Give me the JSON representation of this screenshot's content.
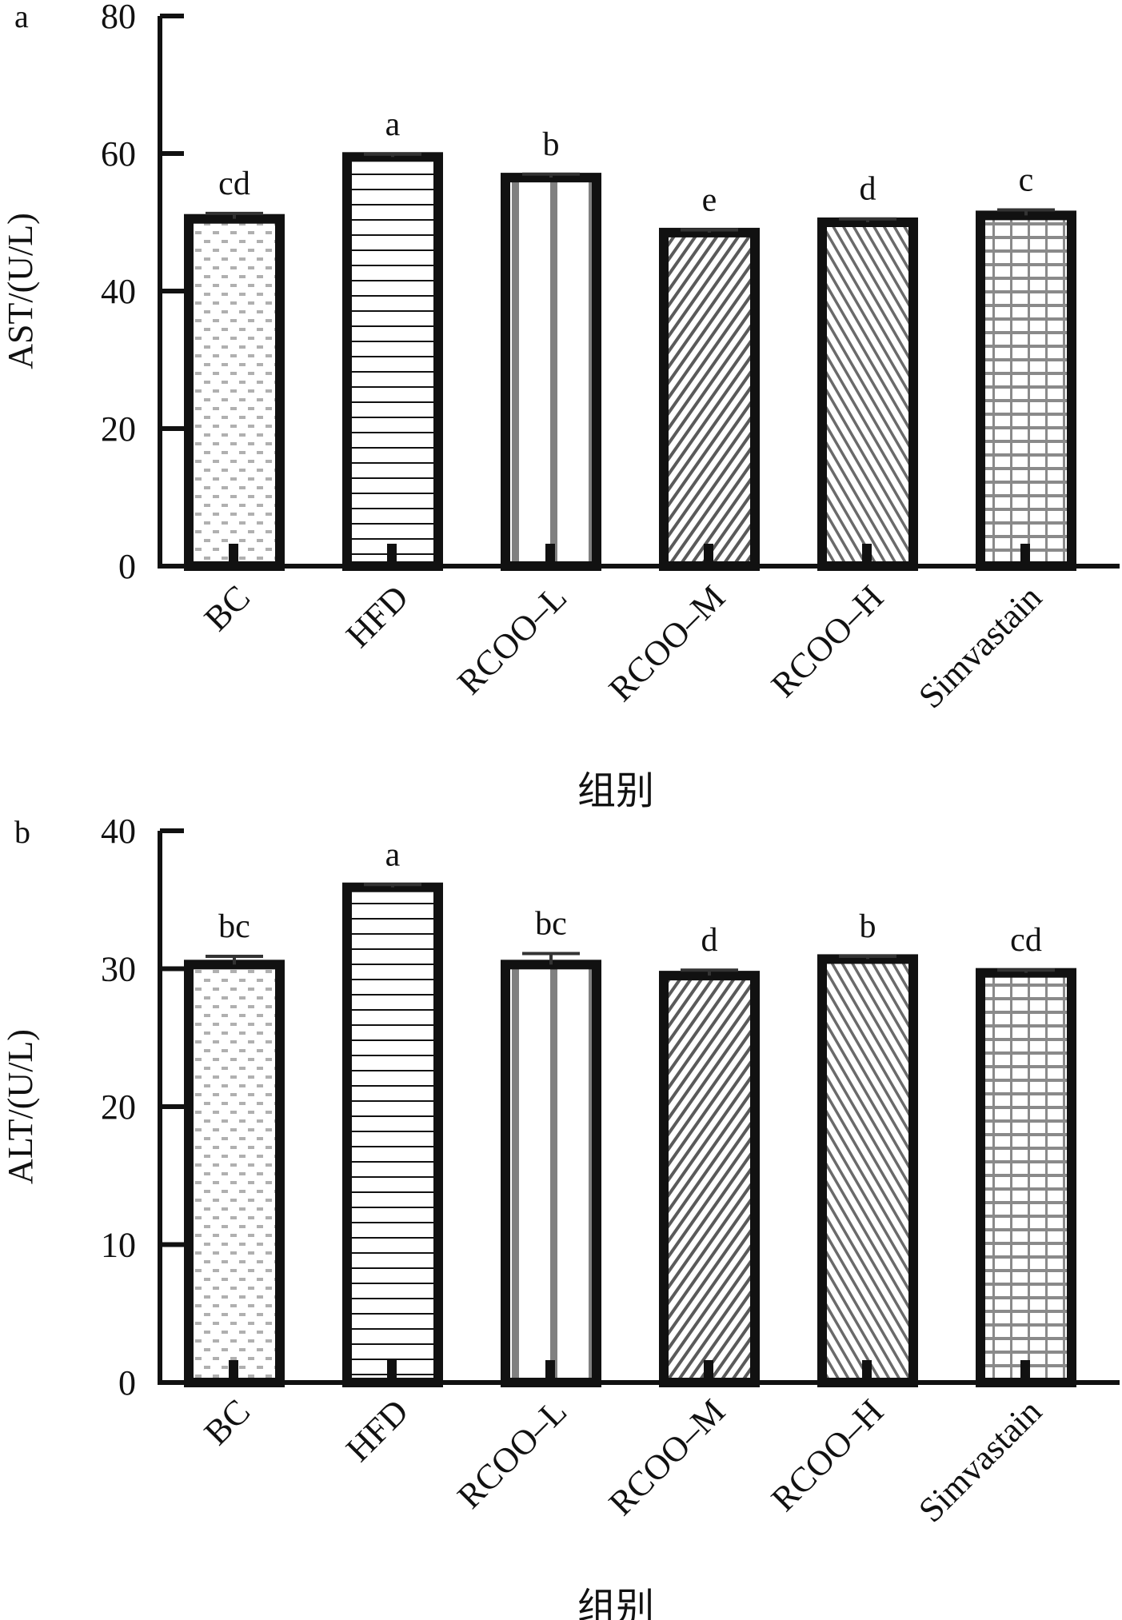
{
  "chart_data": [
    {
      "type": "bar",
      "panel_label": "a",
      "categories": [
        "BC",
        "HFD",
        "RCOO–L",
        "RCOO–M",
        "RCOO–H",
        "Simvastain"
      ],
      "values": [
        50.5,
        59.5,
        56.5,
        48.5,
        50.0,
        51.0
      ],
      "errors": [
        0.8,
        0.4,
        0.5,
        0.4,
        0.5,
        0.8
      ],
      "significance": [
        "cd",
        "a",
        "b",
        "e",
        "d",
        "c"
      ],
      "patterns": [
        "dots",
        "hlines",
        "vbars",
        "diag",
        "diag2",
        "grid"
      ],
      "ylabel": "AST/(U/L)",
      "xlabel": "组别",
      "ylim": [
        0,
        80
      ],
      "yticks": [
        0,
        20,
        40,
        60,
        80
      ]
    },
    {
      "type": "bar",
      "panel_label": "b",
      "categories": [
        "BC",
        "HFD",
        "RCOO–L",
        "RCOO–M",
        "RCOO–H",
        "Simvastain"
      ],
      "values": [
        30.3,
        35.9,
        30.3,
        29.5,
        30.7,
        29.7
      ],
      "errors": [
        0.6,
        0.2,
        0.8,
        0.4,
        0.2,
        0.2
      ],
      "significance": [
        "bc",
        "a",
        "bc",
        "d",
        "b",
        "cd"
      ],
      "patterns": [
        "dots",
        "hlines",
        "vbars",
        "diag",
        "diag2",
        "grid"
      ],
      "ylabel": "ALT/(U/L)",
      "xlabel": "组别",
      "ylim": [
        0,
        40
      ],
      "yticks": [
        0,
        10,
        20,
        30,
        40
      ]
    }
  ]
}
